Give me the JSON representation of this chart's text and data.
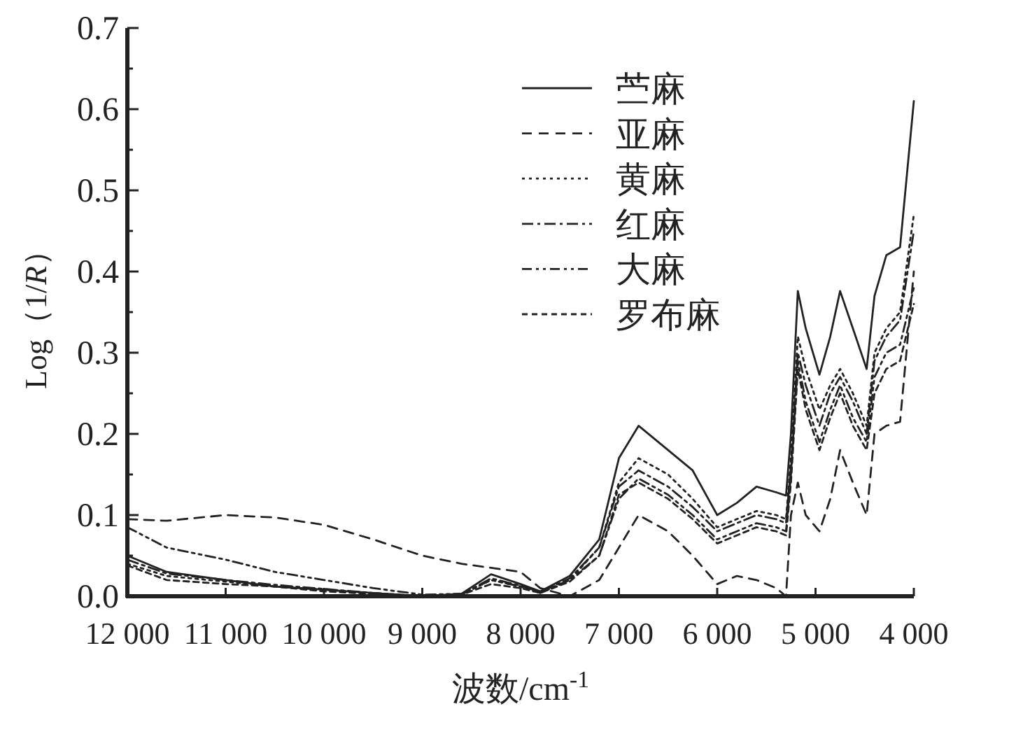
{
  "chart_data": {
    "type": "line",
    "xlabel": "波数/cm$^{-1}$",
    "ylabel": "Log（1/*R*）",
    "x": [
      12000,
      11600,
      11000,
      10500,
      10000,
      9500,
      9000,
      8600,
      8300,
      8000,
      7800,
      7500,
      7200,
      7000,
      6800,
      6500,
      6250,
      6000,
      5800,
      5600,
      5400,
      5300,
      5250,
      5180,
      5100,
      4960,
      4850,
      4750,
      4620,
      4480,
      4400,
      4280,
      4140,
      4000
    ],
    "xlim": [
      12000,
      4000
    ],
    "xticks": [
      {
        "value": 12000,
        "label": "12 000"
      },
      {
        "value": 11000,
        "label": "11 000"
      },
      {
        "value": 10000,
        "label": "10 000"
      },
      {
        "value": 9000,
        "label": "9 000"
      },
      {
        "value": 8000,
        "label": "8 000"
      },
      {
        "value": 7000,
        "label": "7 000"
      },
      {
        "value": 6000,
        "label": "6 000"
      },
      {
        "value": 5000,
        "label": "5 000"
      },
      {
        "value": 4000,
        "label": "4 000"
      }
    ],
    "ylim": [
      0,
      0.7
    ],
    "yticks": [
      {
        "value": 0,
        "label": "0.0"
      },
      {
        "value": 0.05,
        "label": null
      },
      {
        "value": 0.1,
        "label": "0.1"
      },
      {
        "value": 0.15,
        "label": null
      },
      {
        "value": 0.2,
        "label": "0.2"
      },
      {
        "value": 0.25,
        "label": null
      },
      {
        "value": 0.3,
        "label": "0.3"
      },
      {
        "value": 0.35,
        "label": null
      },
      {
        "value": 0.4,
        "label": "0.4"
      },
      {
        "value": 0.45,
        "label": null
      },
      {
        "value": 0.5,
        "label": "0.5"
      },
      {
        "value": 0.55,
        "label": null
      },
      {
        "value": 0.6,
        "label": "0.6"
      },
      {
        "value": 0.65,
        "label": null
      },
      {
        "value": 0.7,
        "label": "0.7"
      }
    ],
    "legend": "top right",
    "grid": false,
    "marker": "none",
    "series": [
      {
        "name": "苎麻",
        "color": "#222222",
        "line_style": "solid",
        "values": [
          0.05,
          0.03,
          0.02,
          0.012,
          0.008,
          0.004,
          0,
          0.003,
          0.027,
          0.015,
          0.006,
          0.025,
          0.07,
          0.17,
          0.21,
          0.18,
          0.155,
          0.1,
          0.115,
          0.135,
          0.128,
          0.124,
          0.2,
          0.376,
          0.33,
          0.273,
          0.32,
          0.376,
          0.33,
          0.28,
          0.37,
          0.42,
          0.43,
          0.61
        ]
      },
      {
        "name": "亚麻",
        "color": "#222222",
        "line_style": "dashed",
        "values": [
          0.095,
          0.093,
          0.1,
          0.097,
          0.088,
          0.07,
          0.05,
          0.04,
          0.035,
          0.03,
          0.01,
          0.0,
          0.02,
          0.06,
          0.1,
          0.08,
          0.05,
          0.015,
          0.025,
          0.02,
          0.01,
          0.0,
          0.1,
          0.14,
          0.1,
          0.08,
          0.12,
          0.18,
          0.14,
          0.1,
          0.2,
          0.21,
          0.215,
          0.4
        ]
      },
      {
        "name": "黄麻",
        "color": "#222222",
        "line_style": "dotted",
        "values": [
          0.04,
          0.025,
          0.018,
          0.012,
          0.008,
          0.004,
          0,
          0.002,
          0.02,
          0.012,
          0.005,
          0.02,
          0.06,
          0.14,
          0.17,
          0.15,
          0.12,
          0.085,
          0.095,
          0.105,
          0.1,
          0.095,
          0.17,
          0.32,
          0.28,
          0.23,
          0.26,
          0.28,
          0.25,
          0.21,
          0.3,
          0.33,
          0.35,
          0.47
        ]
      },
      {
        "name": "红麻",
        "color": "#222222",
        "line_style": "dashdot",
        "values": [
          0.045,
          0.028,
          0.02,
          0.014,
          0.009,
          0.004,
          0,
          0.002,
          0.022,
          0.013,
          0.005,
          0.022,
          0.06,
          0.135,
          0.155,
          0.135,
          0.11,
          0.08,
          0.09,
          0.1,
          0.095,
          0.09,
          0.16,
          0.3,
          0.26,
          0.21,
          0.25,
          0.27,
          0.24,
          0.2,
          0.29,
          0.32,
          0.34,
          0.45
        ]
      },
      {
        "name": "大麻",
        "color": "#222222",
        "line_style": "dashdotdot",
        "values": [
          0.085,
          0.06,
          0.045,
          0.03,
          0.02,
          0.01,
          0.002,
          0.003,
          0.02,
          0.012,
          0.004,
          0.02,
          0.05,
          0.12,
          0.145,
          0.125,
          0.1,
          0.07,
          0.08,
          0.09,
          0.085,
          0.08,
          0.15,
          0.29,
          0.24,
          0.19,
          0.23,
          0.26,
          0.22,
          0.19,
          0.27,
          0.3,
          0.31,
          0.38
        ]
      },
      {
        "name": "罗布麻",
        "color": "#222222",
        "line_style": "shortdash",
        "values": [
          0.038,
          0.02,
          0.015,
          0.012,
          0.006,
          0.003,
          0,
          0.002,
          0.015,
          0.01,
          0.004,
          0.018,
          0.05,
          0.125,
          0.14,
          0.12,
          0.095,
          0.065,
          0.075,
          0.085,
          0.08,
          0.075,
          0.14,
          0.28,
          0.23,
          0.18,
          0.22,
          0.25,
          0.21,
          0.18,
          0.25,
          0.28,
          0.29,
          0.36
        ]
      }
    ]
  }
}
